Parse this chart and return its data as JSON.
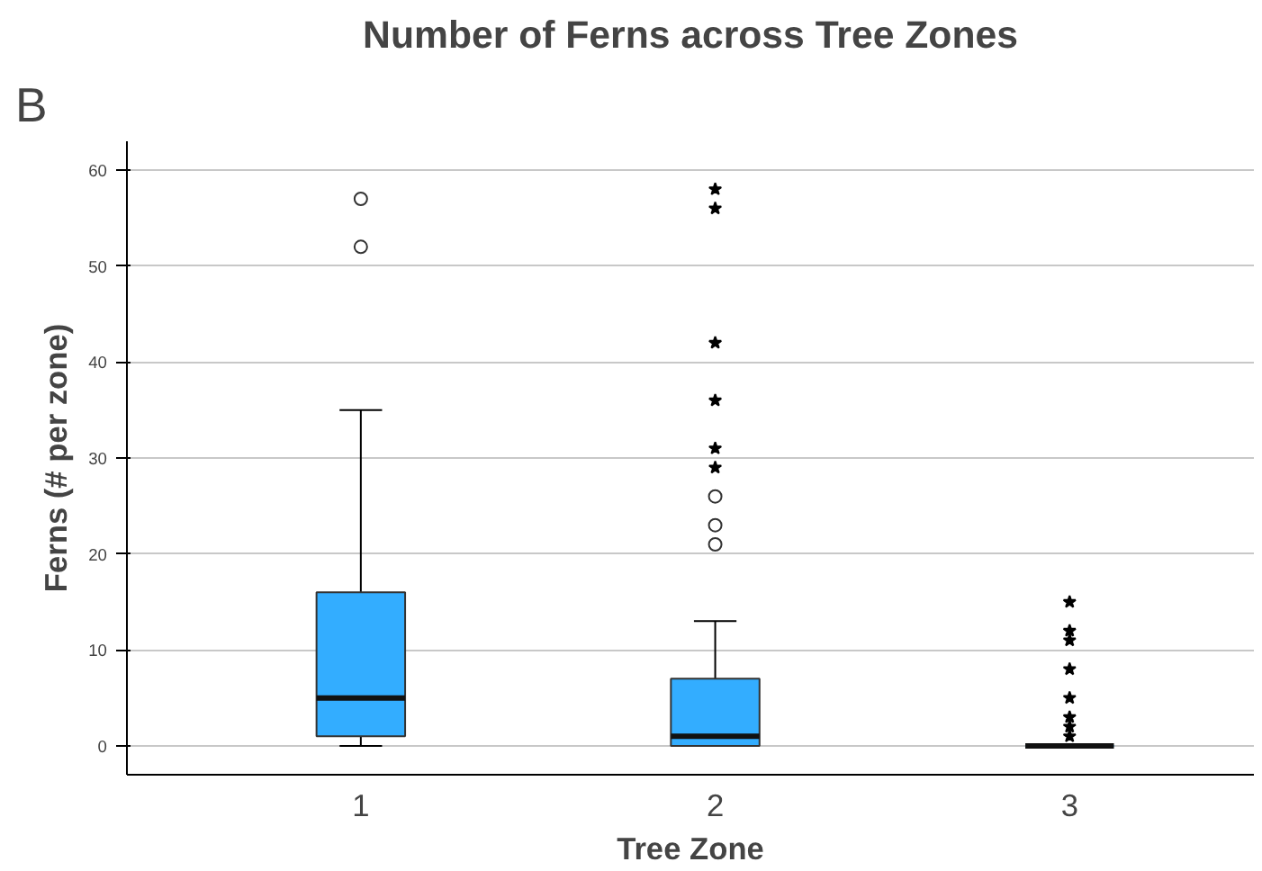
{
  "chart_data": {
    "type": "box",
    "title": "Number of Ferns across Tree Zones",
    "xlabel": "Tree Zone",
    "ylabel": "Ferns (# per zone)",
    "categories": [
      "1",
      "2",
      "3"
    ],
    "series": [
      {
        "color": "#33adff",
        "boxes": [
          {
            "low": 0,
            "q1": 1,
            "median": 5,
            "q3": 16,
            "high": 35,
            "outliers": [
              52,
              57
            ]
          },
          {
            "low": 0,
            "q1": 0,
            "median": 1,
            "q3": 7,
            "high": 13,
            "outliers": [
              21,
              23,
              26
            ]
          },
          {
            "low": 0,
            "q1": 0,
            "median": 0,
            "q3": 0,
            "high": 0
          }
        ]
      },
      {
        "type": "scatter",
        "marker": "star",
        "color": "#000000",
        "x": [
          "2",
          "2",
          "2",
          "2",
          "2",
          "2",
          "3",
          "3",
          "3",
          "3",
          "3",
          "3",
          "3",
          "3"
        ],
        "values": [
          29,
          31,
          36,
          42,
          56,
          58,
          15,
          12,
          11,
          8,
          5,
          3,
          2,
          1
        ]
      }
    ],
    "ylim": [
      -3,
      63
    ],
    "yticks": [
      0,
      10,
      20,
      30,
      40,
      50,
      60
    ],
    "grid": "y",
    "annotations": [
      "B"
    ]
  }
}
